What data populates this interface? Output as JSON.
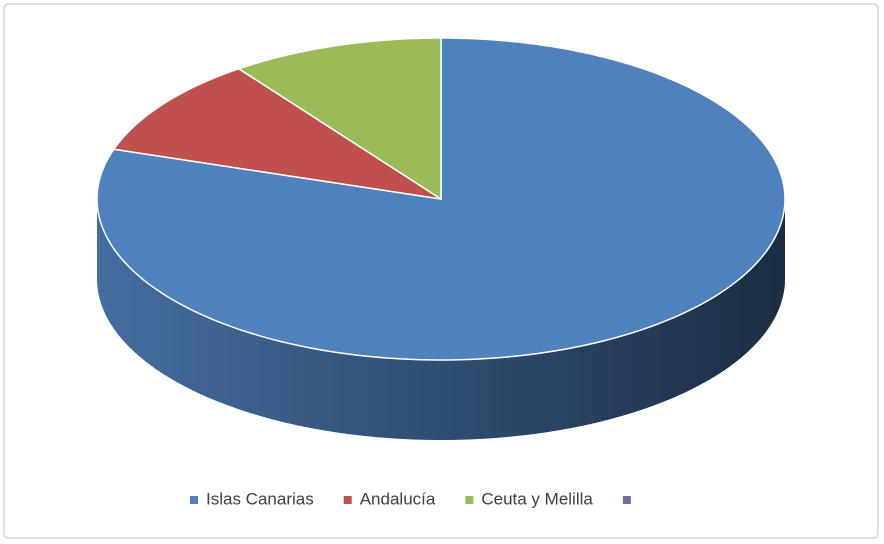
{
  "chart_data": {
    "type": "pie",
    "categories": [
      "Islas Canarias",
      "Andalucía",
      "Ceuta y Melilla",
      null
    ],
    "values": [
      80,
      10,
      10,
      0
    ],
    "colors": [
      "#4f81bd",
      "#c0504d",
      "#9bbb59",
      "#8064a2"
    ],
    "legend": "bottom"
  }
}
